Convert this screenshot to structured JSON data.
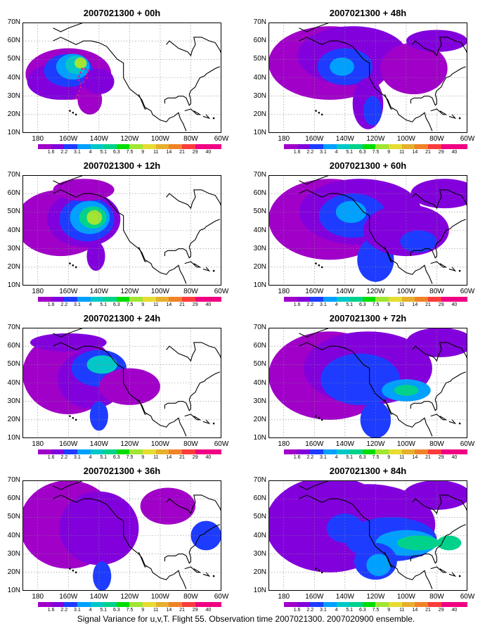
{
  "caption": "Signal Variance for u,v,T. Flight 55. Observation time 2007021300. 2007020900 ensemble.",
  "lat_labels": [
    "70N",
    "60N",
    "50N",
    "40N",
    "30N",
    "20N",
    "10N"
  ],
  "lon_labels": [
    "180",
    "160W",
    "140W",
    "120W",
    "100W",
    "80W",
    "60W"
  ],
  "colorbar": {
    "labels": [
      "1.6",
      "2.2",
      "3.1",
      "4",
      "5.1",
      "6.3",
      "7.5",
      "9",
      "11",
      "14",
      "21",
      "29",
      "40"
    ],
    "colors": [
      "#a000c8",
      "#8200dc",
      "#1e3cff",
      "#00a0ff",
      "#00c8c8",
      "#00d28c",
      "#00dc00",
      "#a0e632",
      "#e6dc32",
      "#e6af2d",
      "#f08228",
      "#fa3c3c",
      "#f00082"
    ]
  },
  "panels": [
    {
      "id": "p00",
      "title": "2007021300 + 00h"
    },
    {
      "id": "p12",
      "title": "2007021300 + 12h"
    },
    {
      "id": "p24",
      "title": "2007021300 + 24h"
    },
    {
      "id": "p36",
      "title": "2007021300 + 36h"
    },
    {
      "id": "p48",
      "title": "2007021300 + 48h"
    },
    {
      "id": "p60",
      "title": "2007021300 + 60h"
    },
    {
      "id": "p72",
      "title": "2007021300 + 72h"
    },
    {
      "id": "p84",
      "title": "2007021300 + 84h"
    }
  ]
}
